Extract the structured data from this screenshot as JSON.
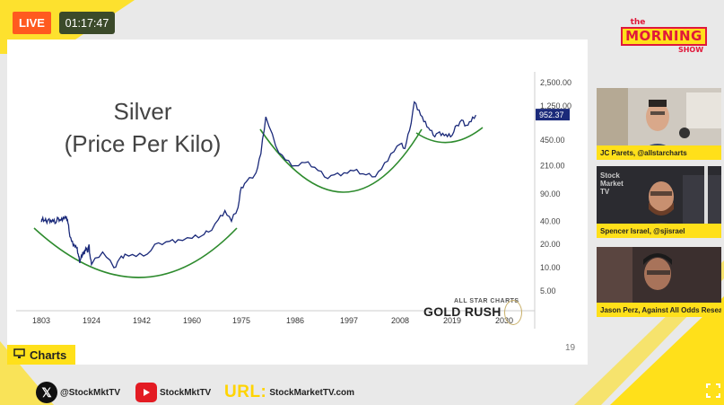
{
  "broadcast": {
    "live_label": "LIVE",
    "timer": "01:17:47",
    "logo": {
      "the": "the",
      "morning": "MORNING",
      "show": "SHOW"
    }
  },
  "slide": {
    "title_line1": "Silver",
    "title_line2": "(Price Per Kilo)",
    "page_number": "19",
    "watermark_small": "ALL STAR CHARTS",
    "watermark_big": "GOLD RUSH"
  },
  "charts_tab": {
    "label": "Charts"
  },
  "participants": [
    {
      "name": "JC Parets, @allstarcharts"
    },
    {
      "name": "Spencer Israel, @sjisrael",
      "backdrop": "Stock Market TV"
    },
    {
      "name": "Jason Perz, Against All Odds Research"
    }
  ],
  "footer": {
    "x_handle": "@StockMktTV",
    "yt_handle": "StockMktTV",
    "url_label": "URL:",
    "url": "StockMarketTV.com"
  },
  "colors": {
    "accent_yellow": "#ffe01a",
    "live_orange": "#ff5a1f",
    "line_navy": "#1b2a7a",
    "arc_green": "#2e8b2e",
    "price_badge": "#1b2a7a"
  },
  "icons": [
    "charts-monitor-icon",
    "x-logo-icon",
    "youtube-icon",
    "fullscreen-icon"
  ],
  "chart_data": {
    "type": "line",
    "scale": "log",
    "x_ticks": [
      "1803",
      "1924",
      "1942",
      "1960",
      "1975",
      "1986",
      "1997",
      "2008",
      "2019",
      "2030"
    ],
    "y_ticks": [
      "2,500.00",
      "1,250.00",
      "450.00",
      "210.00",
      "90.00",
      "40.00",
      "20.00",
      "10.00",
      "5.00"
    ],
    "last_price": "952.37",
    "grid": false,
    "legend": "none",
    "annotation": "three green arcs marking rounding bottoms",
    "series": [
      {
        "x": [
          1803,
          1805,
          1810,
          1815,
          1820,
          1826,
          1832,
          1838,
          1844,
          1850,
          1856,
          1862,
          1866,
          1870,
          1876,
          1882,
          1888,
          1892,
          1895,
          1898,
          1903,
          1907,
          1910,
          1914,
          1918,
          1920,
          1924,
          1928,
          1932,
          1934,
          1936,
          1940,
          1944,
          1948,
          1952,
          1955,
          1960,
          1963,
          1965,
          1968,
          1970,
          1972,
          1974,
          1975,
          1976,
          1978,
          1979,
          1980,
          1982,
          1984,
          1986,
          1988,
          1990,
          1992,
          1994,
          1996,
          1998,
          2000,
          2002,
          2004,
          2006,
          2008,
          2009,
          2010,
          2011,
          2012,
          2013,
          2014,
          2015,
          2016,
          2017,
          2018,
          2019,
          2020,
          2021,
          2022,
          2023,
          2024
        ],
        "y": [
          40,
          42,
          41,
          40,
          42,
          41,
          40,
          38,
          44,
          41,
          45,
          44,
          42,
          30,
          22,
          20,
          18,
          15,
          12,
          13,
          16,
          15,
          18,
          16,
          20,
          15,
          11,
          16,
          10,
          13,
          15,
          14,
          15,
          21,
          22,
          23,
          24,
          26,
          29,
          42,
          55,
          40,
          60,
          110,
          130,
          170,
          300,
          900,
          380,
          250,
          210,
          230,
          200,
          150,
          160,
          170,
          180,
          165,
          150,
          190,
          300,
          400,
          350,
          600,
          1400,
          1100,
          780,
          650,
          520,
          560,
          550,
          500,
          520,
          700,
          820,
          700,
          780,
          950
        ]
      }
    ]
  }
}
